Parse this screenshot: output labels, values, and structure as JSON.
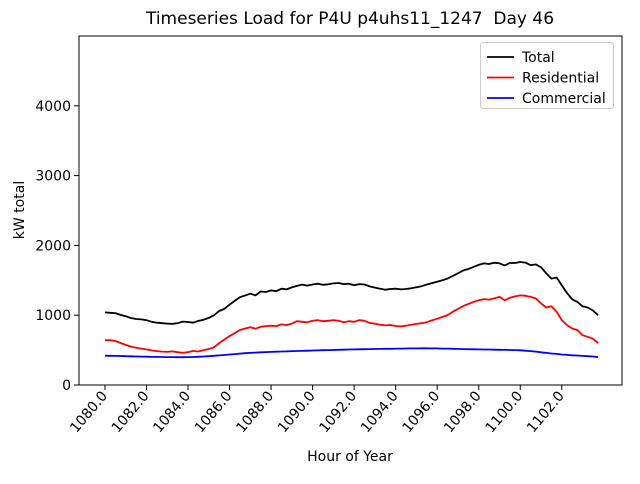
{
  "figure": {
    "background": "#ffffff",
    "frame_color": "#000000"
  },
  "legend": {
    "position": "upper right",
    "border_color": "#cccccc",
    "background": "#ffffff",
    "entries": [
      {
        "label": "Total",
        "color": "#000000"
      },
      {
        "label": "Residential",
        "color": "#ff0000"
      },
      {
        "label": "Commercial",
        "color": "#0000ff"
      }
    ]
  },
  "chart_data": {
    "type": "line",
    "title": "Timeseries Load for P4U p4uhs11_1247  Day 46",
    "xlabel": "Hour of Year",
    "ylabel": "kW total",
    "xlim": [
      1078.75,
      1104.9
    ],
    "ylim": [
      0,
      5000
    ],
    "grid": false,
    "legend_position": "upper right",
    "xticks": [
      1080,
      1082,
      1084,
      1086,
      1088,
      1090,
      1092,
      1094,
      1096,
      1098,
      1100,
      1102
    ],
    "xtick_labels": [
      "1080.0",
      "1082.0",
      "1084.0",
      "1086.0",
      "1088.0",
      "1090.0",
      "1092.0",
      "1094.0",
      "1096.0",
      "1098.0",
      "1100.0",
      "1102.0"
    ],
    "yticks": [
      0,
      1000,
      2000,
      3000,
      4000
    ],
    "ytick_labels": [
      "0",
      "1000",
      "2000",
      "3000",
      "4000"
    ],
    "x": [
      1080.0,
      1080.25,
      1080.5,
      1080.75,
      1081.0,
      1081.25,
      1081.5,
      1081.75,
      1082.0,
      1082.25,
      1082.5,
      1082.75,
      1083.0,
      1083.25,
      1083.5,
      1083.75,
      1084.0,
      1084.25,
      1084.5,
      1084.75,
      1085.0,
      1085.25,
      1085.5,
      1085.75,
      1086.0,
      1086.25,
      1086.5,
      1086.75,
      1087.0,
      1087.25,
      1087.5,
      1087.75,
      1088.0,
      1088.25,
      1088.5,
      1088.75,
      1089.0,
      1089.25,
      1089.5,
      1089.75,
      1090.0,
      1090.25,
      1090.5,
      1090.75,
      1091.0,
      1091.25,
      1091.5,
      1091.75,
      1092.0,
      1092.25,
      1092.5,
      1092.75,
      1093.0,
      1093.25,
      1093.5,
      1093.75,
      1094.0,
      1094.25,
      1094.5,
      1094.75,
      1095.0,
      1095.25,
      1095.5,
      1095.75,
      1096.0,
      1096.25,
      1096.5,
      1096.75,
      1097.0,
      1097.25,
      1097.5,
      1097.75,
      1098.0,
      1098.25,
      1098.5,
      1098.75,
      1099.0,
      1099.25,
      1099.5,
      1099.75,
      1100.0,
      1100.25,
      1100.5,
      1100.75,
      1101.0,
      1101.25,
      1101.5,
      1101.75,
      1102.0,
      1102.25,
      1102.5,
      1102.75,
      1103.0,
      1103.25,
      1103.5,
      1103.75
    ],
    "series": [
      {
        "name": "Total",
        "color": "#000000",
        "values": [
          1040,
          1035,
          1030,
          1005,
          985,
          960,
          945,
          940,
          928,
          905,
          892,
          885,
          880,
          876,
          886,
          908,
          902,
          893,
          918,
          935,
          962,
          1000,
          1060,
          1092,
          1150,
          1205,
          1258,
          1282,
          1308,
          1284,
          1340,
          1332,
          1355,
          1344,
          1380,
          1370,
          1398,
          1420,
          1438,
          1424,
          1440,
          1452,
          1436,
          1442,
          1455,
          1462,
          1446,
          1452,
          1430,
          1446,
          1440,
          1412,
          1395,
          1380,
          1366,
          1376,
          1380,
          1370,
          1376,
          1386,
          1400,
          1416,
          1440,
          1460,
          1478,
          1500,
          1526,
          1562,
          1600,
          1640,
          1662,
          1692,
          1720,
          1742,
          1734,
          1752,
          1744,
          1714,
          1750,
          1748,
          1762,
          1754,
          1716,
          1728,
          1688,
          1600,
          1524,
          1540,
          1428,
          1318,
          1228,
          1190,
          1128,
          1110,
          1068,
          1000
        ]
      },
      {
        "name": "Residential",
        "color": "#ff0000",
        "values": [
          640,
          642,
          630,
          602,
          574,
          550,
          535,
          521,
          510,
          495,
          486,
          478,
          475,
          481,
          470,
          462,
          471,
          488,
          480,
          500,
          516,
          540,
          600,
          652,
          700,
          742,
          788,
          810,
          828,
          806,
          834,
          844,
          850,
          844,
          868,
          858,
          880,
          914,
          905,
          898,
          920,
          930,
          914,
          920,
          930,
          920,
          900,
          914,
          905,
          930,
          920,
          890,
          878,
          864,
          854,
          860,
          845,
          840,
          850,
          862,
          875,
          886,
          900,
          925,
          950,
          976,
          1002,
          1050,
          1090,
          1130,
          1160,
          1190,
          1214,
          1230,
          1224,
          1240,
          1264,
          1214,
          1250,
          1270,
          1284,
          1278,
          1262,
          1240,
          1170,
          1110,
          1128,
          1050,
          930,
          858,
          810,
          786,
          714,
          690,
          664,
          600
        ]
      },
      {
        "name": "Commercial",
        "color": "#0000ff",
        "values": [
          420,
          418,
          417,
          415,
          413,
          411,
          409,
          407,
          405,
          403,
          402,
          401,
          400,
          399,
          398,
          398,
          399,
          401,
          404,
          408,
          413,
          418,
          424,
          430,
          437,
          443,
          450,
          455,
          460,
          464,
          468,
          471,
          474,
          477,
          480,
          482,
          485,
          487,
          489,
          491,
          494,
          496,
          498,
          500,
          502,
          504,
          506,
          508,
          510,
          512,
          513,
          514,
          516,
          517,
          518,
          519,
          521,
          522,
          523,
          524,
          525,
          526,
          526,
          525,
          524,
          522,
          521,
          519,
          517,
          515,
          513,
          511,
          510,
          509,
          508,
          506,
          505,
          503,
          501,
          500,
          497,
          492,
          485,
          478,
          468,
          460,
          452,
          445,
          437,
          431,
          426,
          422,
          417,
          413,
          409,
          400
        ]
      }
    ]
  }
}
